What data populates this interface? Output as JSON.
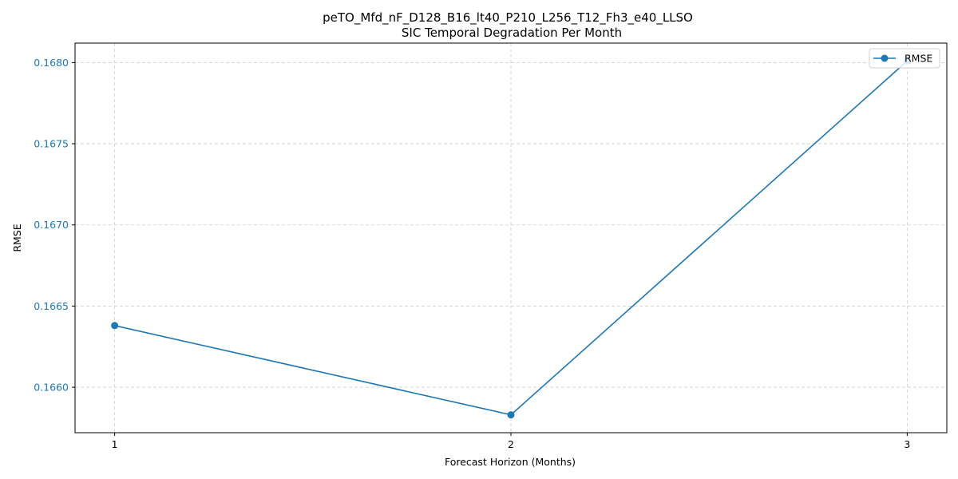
{
  "chart_data": {
    "type": "line",
    "title": "peTO_Mfd_nF_D128_B16_lt40_P210_L256_T12_Fh3_e40_LLSO",
    "subtitle": "SIC Temporal Degradation Per Month",
    "xlabel": "Forecast Horizon (Months)",
    "ylabel": "RMSE",
    "x": [
      1,
      2,
      3
    ],
    "x_tick_labels": [
      "1",
      "2",
      "3"
    ],
    "y_ticks": [
      0.166,
      0.1665,
      0.167,
      0.1675,
      0.168
    ],
    "y_tick_labels": [
      "0.1660",
      "0.1665",
      "0.1670",
      "0.1675",
      "0.1680"
    ],
    "xlim": [
      0.9,
      3.1
    ],
    "ylim": [
      0.16572,
      0.16812
    ],
    "grid": true,
    "legend_position": "top-right",
    "series": [
      {
        "name": "RMSE",
        "color": "#1f77b4",
        "marker": "circle",
        "values": [
          0.16638,
          0.16583,
          0.16801
        ]
      }
    ],
    "colors": {
      "axis": "#000000",
      "grid": "#cccccc",
      "ytick_label": "#1f77b4"
    }
  }
}
